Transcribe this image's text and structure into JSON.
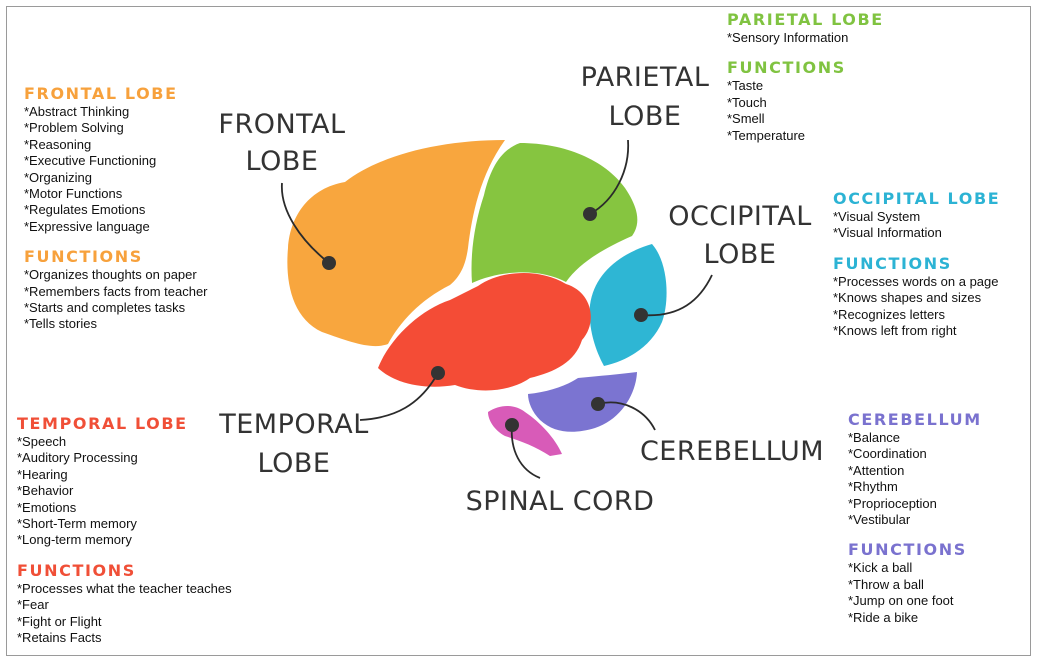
{
  "frontal": {
    "title": "FRONTAL LOBE",
    "items": [
      "*Abstract Thinking",
      "*Problem Solving",
      "*Reasoning",
      "*Executive Functioning",
      "*Organizing",
      "*Motor Functions",
      "*Regulates Emotions",
      "*Expressive language"
    ],
    "functions_title": "FUNCTIONS",
    "functions": [
      "*Organizes thoughts on paper",
      "*Remembers facts from teacher",
      "*Starts and completes tasks",
      "*Tells stories"
    ]
  },
  "parietal": {
    "title": "PARIETAL LOBE",
    "items": [
      "*Sensory Information"
    ],
    "functions_title": "FUNCTIONS",
    "functions": [
      "*Taste",
      "*Touch",
      "*Smell",
      "*Temperature"
    ]
  },
  "occipital": {
    "title": "OCCIPITAL LOBE",
    "items": [
      "*Visual System",
      "*Visual Information"
    ],
    "functions_title": "FUNCTIONS",
    "functions": [
      "*Processes words on a page",
      "*Knows shapes and sizes",
      "*Recognizes letters",
      "*Knows left from right"
    ]
  },
  "temporal": {
    "title": "TEMPORAL LOBE",
    "items": [
      "*Speech",
      "*Auditory Processing",
      "*Hearing",
      "*Behavior",
      "*Emotions",
      "*Short-Term memory",
      "*Long-term memory"
    ],
    "functions_title": "FUNCTIONS",
    "functions": [
      "*Processes what the teacher teaches",
      "*Fear",
      "*Fight or Flight",
      "*Retains Facts"
    ]
  },
  "cerebellum": {
    "title": "CEREBELLUM",
    "items": [
      "*Balance",
      "*Coordination",
      "*Attention",
      "*Rhythm",
      "*Proprioception",
      "*Vestibular"
    ],
    "functions_title": "FUNCTIONS",
    "functions": [
      "*Kick a ball",
      "*Throw a ball",
      "*Jump on one foot",
      "*Ride a bike"
    ]
  },
  "diagram": {
    "frontal_label": [
      "FRONTAL",
      "LOBE"
    ],
    "parietal_label": [
      "PARIETAL",
      "LOBE"
    ],
    "occipital_label": [
      "OCCIPITAL",
      "LOBE"
    ],
    "temporal_label": [
      "TEMPORAL",
      "LOBE"
    ],
    "cerebellum_label": "CEREBELLUM",
    "spinal_label": "SPINAL CORD"
  },
  "colors": {
    "frontal": "#f8a63e",
    "parietal": "#86c540",
    "occipital": "#2eb6d4",
    "temporal": "#f44c36",
    "cerebellum": "#7b74d1",
    "spinal": "#d85bb8"
  }
}
